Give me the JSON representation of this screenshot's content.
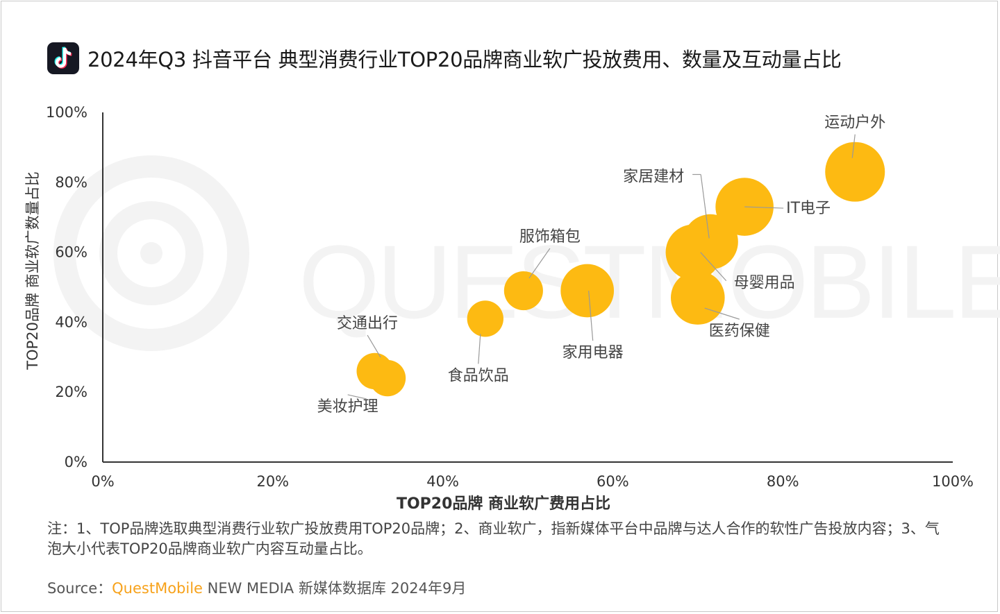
{
  "title": "2024年Q3 抖音平台 典型消费行业TOP20品牌商业软广投放费用、数量及互动量占比",
  "watermark": "QUESTMOBILE",
  "note": "注：1、TOP品牌选取典型消费行业软广投放费用TOP20品牌；2、商业软广，指新媒体平台中品牌与达人合作的软性广告投放内容；3、气泡大小代表TOP20品牌商业软广内容互动量占比。",
  "source": {
    "label": "Source：",
    "brand": "QuestMobile",
    "rest": " NEW MEDIA 新媒体数据库 2024年9月"
  },
  "colors": {
    "bubble": "#FDBA12",
    "axis": "#333333",
    "leader": "#999999",
    "brand": "#F7A21B"
  },
  "chart_data": {
    "type": "scatter",
    "xlabel": "TOP20品牌 商业软广费用占比",
    "ylabel": "TOP20品牌 商业软广数量占比",
    "xlim": [
      0,
      100
    ],
    "ylim": [
      0,
      100
    ],
    "xticks": [
      "0%",
      "20%",
      "40%",
      "60%",
      "80%",
      "100%"
    ],
    "yticks": [
      "0%",
      "20%",
      "40%",
      "60%",
      "80%",
      "100%"
    ],
    "grid": false,
    "size_encodes": "互动量占比",
    "points": [
      {
        "name": "美妆护理",
        "x": 32,
        "y": 26,
        "size": 2.0
      },
      {
        "name": "交通出行",
        "x": 33.5,
        "y": 24,
        "size": 2.0
      },
      {
        "name": "食品饮品",
        "x": 45,
        "y": 41,
        "size": 2.0
      },
      {
        "name": "服饰箱包",
        "x": 49.5,
        "y": 49,
        "size": 2.3
      },
      {
        "name": "家用电器",
        "x": 57,
        "y": 49,
        "size": 4.3
      },
      {
        "name": "医药保健",
        "x": 70,
        "y": 47,
        "size": 4.4
      },
      {
        "name": "母婴用品",
        "x": 69.5,
        "y": 60,
        "size": 4.7
      },
      {
        "name": "家居建材",
        "x": 71.5,
        "y": 63,
        "size": 4.6
      },
      {
        "name": "IT电子",
        "x": 75.5,
        "y": 73,
        "size": 5.1
      },
      {
        "name": "运动户外",
        "x": 88.5,
        "y": 83,
        "size": 5.4
      }
    ]
  }
}
